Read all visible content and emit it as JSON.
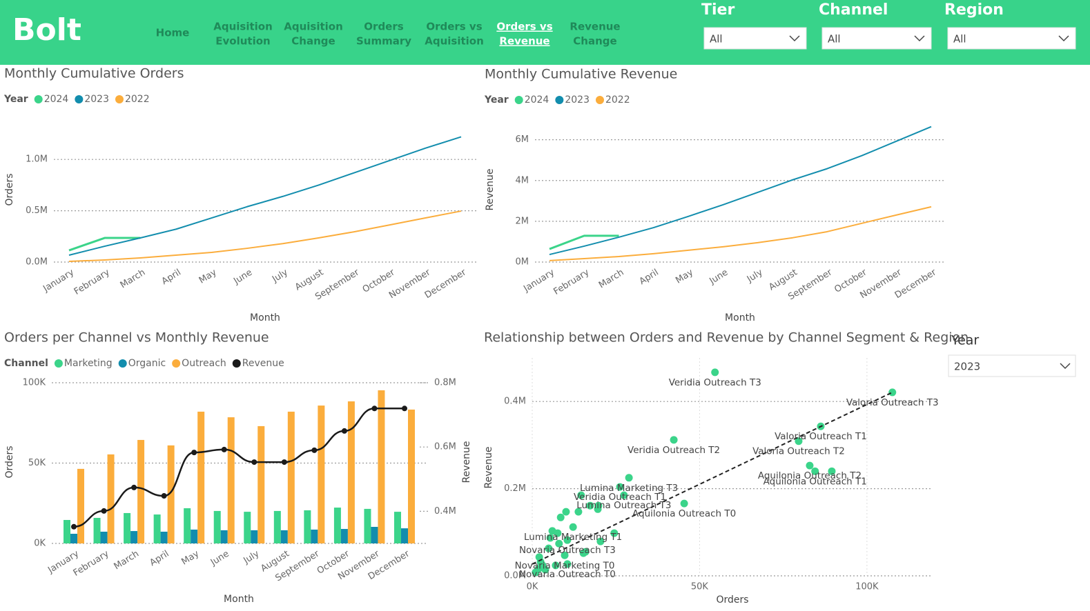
{
  "header": {
    "logo": "Bolt",
    "nav": [
      [
        "Home"
      ],
      [
        "Aquisition",
        "Evolution"
      ],
      [
        "Aquisition",
        "Change"
      ],
      [
        "Orders",
        "Summary"
      ],
      [
        "Orders vs",
        "Aquisition"
      ],
      [
        "Orders vs",
        "Revenue"
      ],
      [
        "Revenue",
        "Change"
      ]
    ],
    "active_nav": 5,
    "filters": [
      {
        "label": "Tier",
        "value": "All"
      },
      {
        "label": "Channel",
        "value": "All"
      },
      {
        "label": "Region",
        "value": "All"
      }
    ]
  },
  "chart_data": [
    {
      "type": "line",
      "title": "Monthly Cumulative Orders",
      "legend_title": "Year",
      "x_label": "Month",
      "y_label": "Orders",
      "categories": [
        "January",
        "February",
        "March",
        "April",
        "May",
        "June",
        "July",
        "August",
        "September",
        "October",
        "November",
        "December"
      ],
      "series": [
        {
          "name": "2024",
          "color": "#3bd48a",
          "values": [
            114000,
            235000,
            235000,
            null,
            null,
            null,
            null,
            null,
            null,
            null,
            null,
            null
          ]
        },
        {
          "name": "2023",
          "color": "#128dad",
          "values": [
            67000,
            154000,
            235000,
            320000,
            430000,
            540000,
            640000,
            750000,
            870000,
            990000,
            1110000,
            1220000
          ]
        },
        {
          "name": "2022",
          "color": "#fbad3c",
          "values": [
            7000,
            20000,
            40000,
            67000,
            94000,
            134000,
            180000,
            235000,
            295000,
            362000,
            430000,
            497000
          ]
        }
      ],
      "ylim": [
        0,
        1250000
      ],
      "yticks": [
        {
          "value": 0,
          "label": "0.0M"
        },
        {
          "value": 500000,
          "label": "0.5M"
        },
        {
          "value": 1000000,
          "label": "1.0M"
        }
      ],
      "grid": true
    },
    {
      "type": "line",
      "title": "Monthly Cumulative Revenue",
      "legend_title": "Year",
      "x_label": "Month",
      "y_label": "Revenue",
      "categories": [
        "January",
        "February",
        "March",
        "April",
        "May",
        "June",
        "July",
        "August",
        "September",
        "October",
        "November",
        "December"
      ],
      "series": [
        {
          "name": "2024",
          "color": "#3bd48a",
          "values": [
            640000,
            1290000,
            1290000,
            null,
            null,
            null,
            null,
            null,
            null,
            null,
            null,
            null
          ]
        },
        {
          "name": "2023",
          "color": "#128dad",
          "values": [
            370000,
            780000,
            1220000,
            1690000,
            2240000,
            2810000,
            3420000,
            4030000,
            4580000,
            5220000,
            5930000,
            6640000
          ]
        },
        {
          "name": "2022",
          "color": "#fbad3c",
          "values": [
            70000,
            170000,
            270000,
            410000,
            580000,
            750000,
            950000,
            1190000,
            1490000,
            1900000,
            2310000,
            2710000
          ]
        }
      ],
      "ylim": [
        0,
        6800000
      ],
      "yticks": [
        {
          "value": 0,
          "label": "0M"
        },
        {
          "value": 2000000,
          "label": "2M"
        },
        {
          "value": 4000000,
          "label": "4M"
        },
        {
          "value": 6000000,
          "label": "6M"
        }
      ],
      "grid": true
    },
    {
      "type": "combo",
      "title": "Orders per Channel vs Monthly Revenue",
      "legend_title": "Channel",
      "x_label": "Month",
      "y_label": "Orders",
      "y2_label": "Revenue",
      "categories": [
        "January",
        "February",
        "March",
        "April",
        "May",
        "June",
        "July",
        "August",
        "September",
        "October",
        "November",
        "December"
      ],
      "series": [
        {
          "name": "Marketing",
          "color": "#3bd48a",
          "values": [
            14600,
            15900,
            18900,
            18000,
            21900,
            20200,
            19700,
            20200,
            20600,
            22300,
            21500,
            19700
          ]
        },
        {
          "name": "Organic",
          "color": "#128dad",
          "values": [
            6000,
            7300,
            7700,
            7300,
            8600,
            8200,
            8200,
            8200,
            8600,
            9000,
            10300,
            9400
          ]
        },
        {
          "name": "Outreach",
          "color": "#fbad3c",
          "values": [
            46400,
            55400,
            64400,
            61000,
            82000,
            78500,
            73000,
            82000,
            85800,
            88400,
            95300,
            83300
          ]
        },
        {
          "name": "Revenue",
          "color": "#1a1a1a",
          "type": "line",
          "axis": "y2",
          "values": [
            352000,
            401000,
            474000,
            448000,
            583000,
            592000,
            553000,
            553000,
            590000,
            650000,
            720000,
            720000
          ]
        }
      ],
      "ylim": [
        0,
        100000
      ],
      "yticks": [
        {
          "value": 0,
          "label": "0K"
        },
        {
          "value": 50000,
          "label": "50K"
        },
        {
          "value": 100000,
          "label": "100K"
        }
      ],
      "y2lim": [
        300000,
        800000
      ],
      "y2ticks": [
        {
          "value": 400000,
          "label": "0.4M"
        },
        {
          "value": 600000,
          "label": "0.6M"
        },
        {
          "value": 800000,
          "label": "0.8M"
        }
      ],
      "grid": true
    },
    {
      "type": "scatter",
      "title": "Relationship between Orders and Revenue by Channel Segment & Region",
      "x_label": "Orders",
      "y_label": "Revenue",
      "color": "#3bd48a",
      "x": [
        54600,
        107600,
        86200,
        79600,
        42300,
        82900,
        84500,
        28900,
        26200,
        27400,
        45400,
        12200,
        10500,
        9700,
        10500,
        89500,
        1000,
        1900,
        2500,
        3100,
        3900,
        2100,
        4900,
        6000,
        7600,
        8500,
        10100,
        13800,
        14600,
        17300,
        19800,
        19600,
        5400,
        8000,
        15900,
        20400,
        24500,
        7000,
        15300
      ],
      "values": [
        467000,
        421000,
        343000,
        309000,
        312000,
        253000,
        240000,
        225000,
        204000,
        185000,
        166000,
        112000,
        82000,
        47000,
        27000,
        240000,
        8000,
        16000,
        32000,
        24000,
        14000,
        43000,
        63000,
        103000,
        98000,
        134000,
        147000,
        147000,
        185000,
        161000,
        161000,
        153000,
        87000,
        74000,
        55000,
        79000,
        98000,
        24000,
        52000
      ],
      "labels": [
        "Veridia Outreach T3",
        "Valoria Outreach T3",
        "Valoria Outreach T1",
        "Valoria Outreach T2",
        "Veridia Outreach T2",
        "Aquilonia Outreach T2",
        "Aquilonia Outreach T1",
        "Lumina Marketing T3",
        "Veridia Outreach T1",
        "Lumina Outreach T3",
        "Aquilonia Outreach T0",
        "Lumina Marketing T1",
        "Novaria Outreach T3",
        "Novaria Marketing T0",
        "Novaria Outreach T0",
        null,
        null,
        null,
        null,
        null,
        null,
        null,
        null,
        null,
        null,
        null,
        null,
        null,
        null,
        null,
        null,
        null,
        null,
        null,
        null,
        null,
        null,
        null,
        null
      ],
      "trend_line": {
        "x": [
          0,
          107600
        ],
        "values": [
          27000,
          421000
        ]
      },
      "xlim": [
        0,
        119000
      ],
      "ylim": [
        0,
        500000
      ],
      "xticks": [
        {
          "value": 0,
          "label": "0K"
        },
        {
          "value": 50000,
          "label": "50K"
        },
        {
          "value": 100000,
          "label": "100K"
        }
      ],
      "yticks": [
        {
          "value": 0,
          "label": "0.0M"
        },
        {
          "value": 200000,
          "label": "0.2M"
        },
        {
          "value": 400000,
          "label": "0.4M"
        }
      ],
      "grid": true
    }
  ],
  "year_slicer": {
    "label": "Year",
    "value": "2023"
  }
}
